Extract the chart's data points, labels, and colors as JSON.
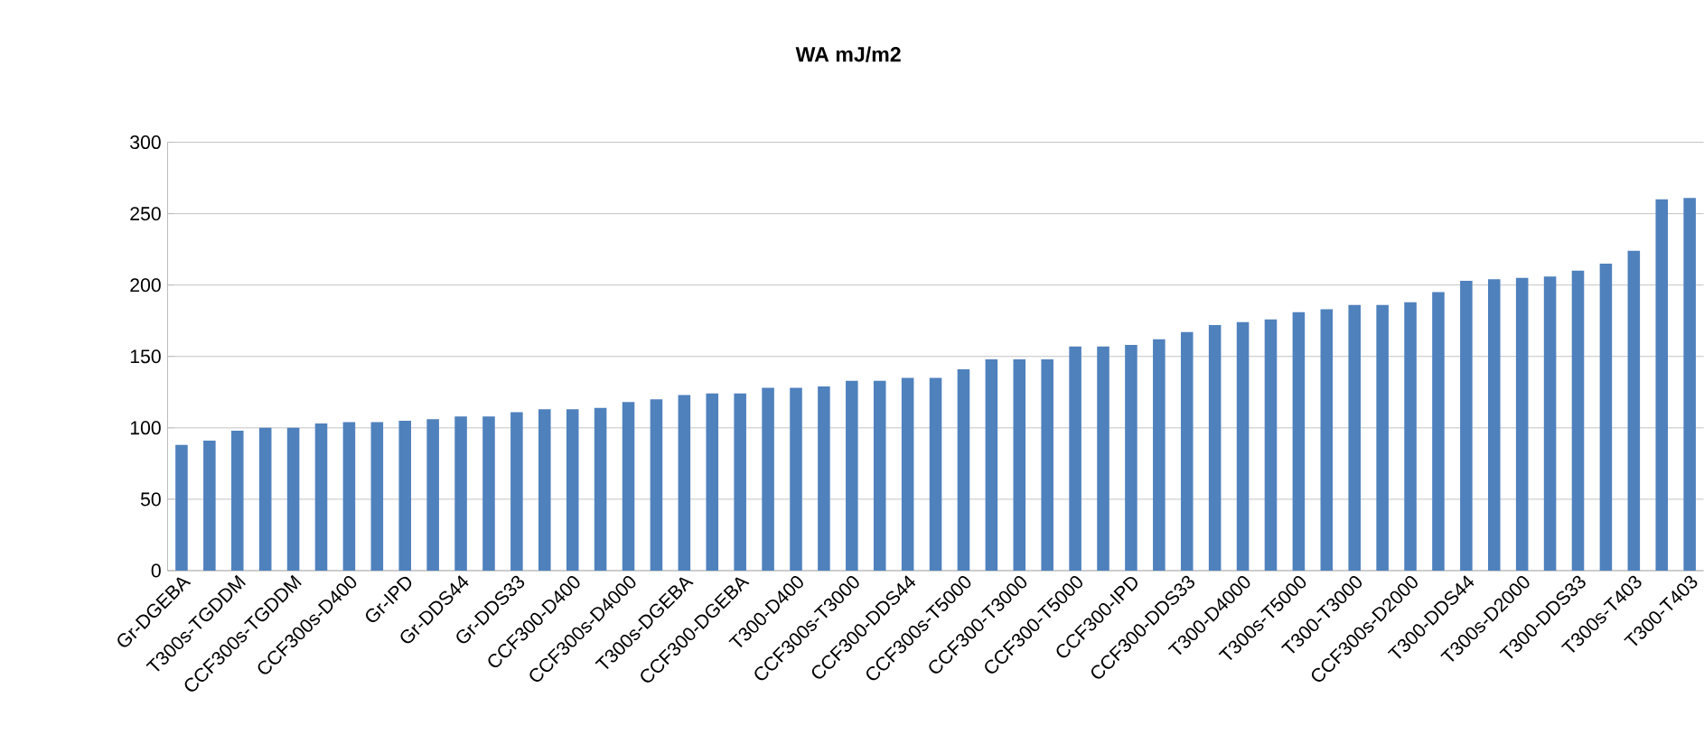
{
  "chart_data": {
    "type": "bar",
    "title": "WA mJ/m2",
    "categories": [
      "Gr-DGEBA",
      null,
      "T300s-TGDDM",
      null,
      "CCF300s-TGDDM",
      null,
      "CCF300s-D400",
      null,
      "Gr-IPD",
      null,
      "Gr-DDS44",
      null,
      "Gr-DDS33",
      null,
      "CCF300-D400",
      null,
      "CCF300s-D4000",
      null,
      "T300s-DGEBA",
      null,
      "CCF300-DGEBA",
      null,
      "T300-D400",
      null,
      "CCF300s-T3000",
      null,
      "CCF300-DDS44",
      null,
      "CCF300s-T5000",
      null,
      "CCF300-T3000",
      null,
      "CCF300-T5000",
      null,
      "CCF300-IPD",
      null,
      "CCF300-DDS33",
      null,
      "T300-D4000",
      null,
      "T300s-T5000",
      null,
      "T300-T3000",
      null,
      "CCF300s-D2000",
      null,
      "T300-DDS44",
      null,
      "T300s-D2000",
      null,
      "T300-DDS33",
      null,
      "T300s-T403",
      null,
      "T300-T403"
    ],
    "values": [
      88,
      91,
      98,
      100,
      100,
      103,
      104,
      104,
      105,
      106,
      108,
      108,
      111,
      113,
      113,
      114,
      118,
      120,
      123,
      124,
      124,
      128,
      128,
      129,
      133,
      133,
      135,
      135,
      141,
      148,
      148,
      148,
      157,
      157,
      158,
      162,
      167,
      172,
      174,
      176,
      181,
      183,
      186,
      186,
      188,
      195,
      203,
      204,
      205,
      206,
      210,
      215,
      224,
      260,
      261
    ],
    "color": "#4f81bd",
    "ylim": [
      0,
      300
    ],
    "yticks": [
      0,
      50,
      100,
      150,
      200,
      250,
      300
    ],
    "grid": "y"
  }
}
